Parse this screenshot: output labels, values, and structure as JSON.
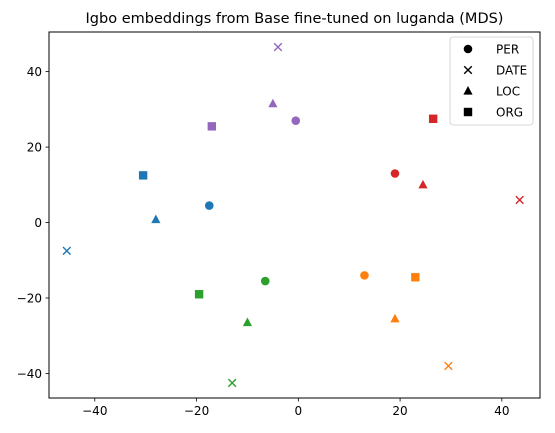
{
  "chart_data": {
    "type": "scatter",
    "title": "Igbo embeddings from Base fine-tuned on luganda (MDS)",
    "xlabel": "",
    "ylabel": "",
    "xlim": [
      -49,
      47.5
    ],
    "ylim": [
      -46.5,
      50.5
    ],
    "xticks": [
      -40,
      -20,
      0,
      20,
      40
    ],
    "yticks": [
      -40,
      -20,
      0,
      20,
      40
    ],
    "grid": false,
    "legend_position": "top-right",
    "legend": [
      {
        "label": "PER",
        "marker": "circle"
      },
      {
        "label": "DATE",
        "marker": "x"
      },
      {
        "label": "LOC",
        "marker": "triangle"
      },
      {
        "label": "ORG",
        "marker": "square"
      }
    ],
    "colors": {
      "blue": "#1f77b4",
      "orange": "#ff7f0e",
      "green": "#2ca02c",
      "red": "#d62728",
      "purple": "#9467bd"
    },
    "points": [
      {
        "x": -17.5,
        "y": 4.5,
        "marker": "circle",
        "color": "blue"
      },
      {
        "x": -45.5,
        "y": -7.5,
        "marker": "x",
        "color": "blue"
      },
      {
        "x": -28,
        "y": 0.8,
        "marker": "triangle",
        "color": "blue"
      },
      {
        "x": -30.5,
        "y": 12.5,
        "marker": "square",
        "color": "blue"
      },
      {
        "x": 13,
        "y": -14,
        "marker": "circle",
        "color": "orange"
      },
      {
        "x": 29.5,
        "y": -38,
        "marker": "x",
        "color": "orange"
      },
      {
        "x": 19,
        "y": -25.5,
        "marker": "triangle",
        "color": "orange"
      },
      {
        "x": 23,
        "y": -14.5,
        "marker": "square",
        "color": "orange"
      },
      {
        "x": -6.5,
        "y": -15.5,
        "marker": "circle",
        "color": "green"
      },
      {
        "x": -13,
        "y": -42.5,
        "marker": "x",
        "color": "green"
      },
      {
        "x": -10,
        "y": -26.5,
        "marker": "triangle",
        "color": "green"
      },
      {
        "x": -19.5,
        "y": -19,
        "marker": "square",
        "color": "green"
      },
      {
        "x": 19,
        "y": 13,
        "marker": "circle",
        "color": "red"
      },
      {
        "x": 43.5,
        "y": 6,
        "marker": "x",
        "color": "red"
      },
      {
        "x": 24.5,
        "y": 10,
        "marker": "triangle",
        "color": "red"
      },
      {
        "x": 26.5,
        "y": 27.5,
        "marker": "square",
        "color": "red"
      },
      {
        "x": -0.5,
        "y": 27,
        "marker": "circle",
        "color": "purple"
      },
      {
        "x": -4,
        "y": 46.5,
        "marker": "x",
        "color": "purple"
      },
      {
        "x": -5,
        "y": 31.5,
        "marker": "triangle",
        "color": "purple"
      },
      {
        "x": -17,
        "y": 25.5,
        "marker": "square",
        "color": "purple"
      }
    ]
  }
}
